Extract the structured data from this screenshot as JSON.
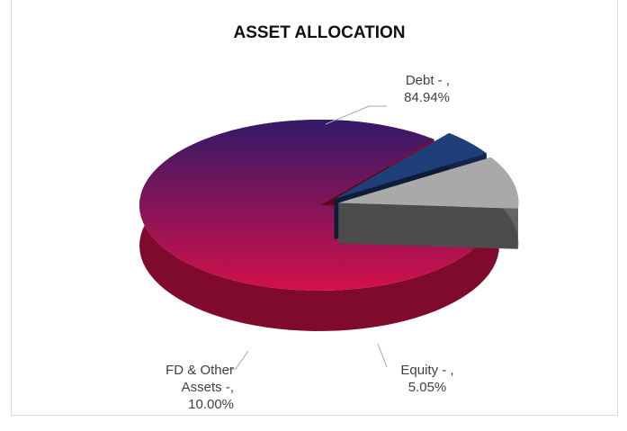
{
  "chart_data": {
    "type": "pie",
    "title": "ASSET ALLOCATION",
    "categories": [
      "Debt - ,",
      "Equity - ,",
      "FD & Other Assets -,"
    ],
    "values": [
      84.94,
      5.05,
      10.0
    ],
    "value_labels": [
      "84.94%",
      "5.05%",
      "10.00%"
    ],
    "colors": [
      "#d4104a",
      "#1f3f7a",
      "#a9a9a9"
    ]
  }
}
